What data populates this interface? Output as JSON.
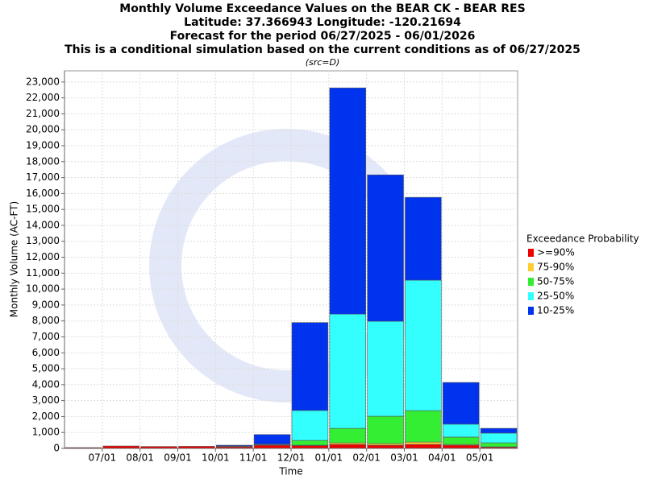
{
  "chart_data": {
    "type": "stacked_bar",
    "title": [
      "Monthly Volume Exceedance Values on the BEAR CK - BEAR RES",
      "Latitude: 37.366943 Longitude: -120.21694",
      "Forecast for the period 06/27/2025 - 06/01/2026",
      "This is a conditional simulation based on the current conditions as of 06/27/2025"
    ],
    "subtitle": "(src=D)",
    "x_label": "Time",
    "y_label": "Monthly Volume (AC-FT)",
    "legend_title": "Exceedance Probability",
    "categories": [
      null,
      "07/01",
      "08/01",
      "09/01",
      "10/01",
      "11/01",
      "12/01",
      "01/01",
      "02/01",
      "03/01",
      "04/01",
      "05/01"
    ],
    "series": [
      {
        "name": ">=90%",
        "color": "#ee0000",
        "values": [
          50,
          150,
          120,
          130,
          100,
          200,
          180,
          250,
          200,
          250,
          200,
          80
        ]
      },
      {
        "name": "75-90%",
        "color": "#ffcc33",
        "values": [
          0,
          0,
          0,
          0,
          0,
          10,
          20,
          100,
          100,
          150,
          50,
          20
        ]
      },
      {
        "name": "50-75%",
        "color": "#33ee33",
        "values": [
          0,
          0,
          0,
          0,
          20,
          20,
          300,
          910,
          1720,
          1970,
          460,
          250
        ]
      },
      {
        "name": "25-50%",
        "color": "#33ffff",
        "values": [
          0,
          0,
          0,
          0,
          30,
          40,
          1880,
          7170,
          5960,
          8190,
          810,
          610
        ]
      },
      {
        "name": "10-25%",
        "color": "#0033ee",
        "values": [
          0,
          0,
          0,
          0,
          50,
          600,
          5520,
          14200,
          9190,
          5200,
          2620,
          300
        ]
      }
    ],
    "ylim": [
      0,
      23700
    ],
    "yticks": [
      0,
      {
        "value": 1000,
        "label": "1,000"
      },
      {
        "value": 2000,
        "label": "2,000"
      },
      {
        "value": 3000,
        "label": "3,000"
      },
      {
        "value": 4000,
        "label": "4,000"
      },
      {
        "value": 5000,
        "label": "5,000"
      },
      {
        "value": 6000,
        "label": "6,000"
      },
      {
        "value": 7000,
        "label": "7,000"
      },
      {
        "value": 8000,
        "label": "8,000"
      },
      {
        "value": 9000,
        "label": "9,000"
      },
      {
        "value": 10000,
        "label": "10,000"
      },
      {
        "value": 11000,
        "label": "11,000"
      },
      {
        "value": 12000,
        "label": "12,000"
      },
      {
        "value": 13000,
        "label": "13,000"
      },
      {
        "value": 14000,
        "label": "14,000"
      },
      {
        "value": 15000,
        "label": "15,000"
      },
      {
        "value": 16000,
        "label": "16,000"
      },
      {
        "value": 17000,
        "label": "17,000"
      },
      {
        "value": 18000,
        "label": "18,000"
      },
      {
        "value": 19000,
        "label": "19,000"
      },
      {
        "value": 20000,
        "label": "20,000"
      },
      {
        "value": 21000,
        "label": "21,000"
      },
      {
        "value": 22000,
        "label": "22,000"
      },
      {
        "value": 23000,
        "label": "23,000"
      }
    ],
    "grid": true
  }
}
